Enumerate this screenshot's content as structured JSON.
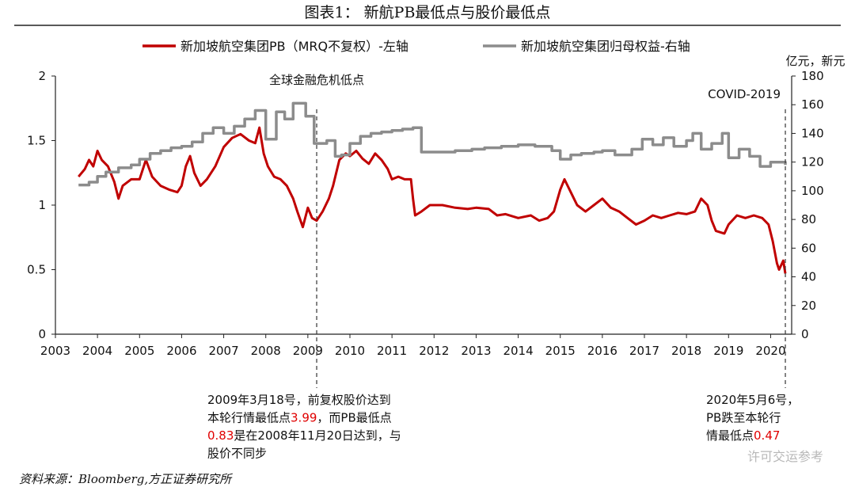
{
  "figure": {
    "title": "图表1：  新航PB最低点与股价最低点",
    "source": "资料来源：Bloomberg,方正证券研究所",
    "watermark": "许可交运参考"
  },
  "chart_data": {
    "type": "line",
    "xlim": [
      2003,
      2020.5
    ],
    "xticks": [
      2003,
      2004,
      2005,
      2006,
      2007,
      2008,
      2009,
      2010,
      2011,
      2012,
      2013,
      2014,
      2015,
      2016,
      2017,
      2018,
      2019,
      2020
    ],
    "ylim_left": [
      0,
      2
    ],
    "yticks_left": [
      0,
      0.5,
      1,
      1.5,
      2
    ],
    "ylim_right": [
      0,
      180
    ],
    "yticks_right": [
      0,
      20,
      40,
      60,
      80,
      100,
      120,
      140,
      160,
      180
    ],
    "right_unit": "亿元，新元",
    "legend_position": "top",
    "series": [
      {
        "name": "新加坡航空集团PB（MRQ不复权）-左轴",
        "axis": "left",
        "color": "#c00000",
        "style": "line",
        "points": [
          [
            2003.55,
            1.22
          ],
          [
            2003.7,
            1.28
          ],
          [
            2003.8,
            1.35
          ],
          [
            2003.9,
            1.3
          ],
          [
            2004.0,
            1.42
          ],
          [
            2004.1,
            1.35
          ],
          [
            2004.25,
            1.3
          ],
          [
            2004.4,
            1.18
          ],
          [
            2004.5,
            1.05
          ],
          [
            2004.6,
            1.15
          ],
          [
            2004.8,
            1.2
          ],
          [
            2005.0,
            1.2
          ],
          [
            2005.15,
            1.35
          ],
          [
            2005.3,
            1.22
          ],
          [
            2005.5,
            1.15
          ],
          [
            2005.7,
            1.12
          ],
          [
            2005.9,
            1.1
          ],
          [
            2006.0,
            1.15
          ],
          [
            2006.1,
            1.3
          ],
          [
            2006.2,
            1.38
          ],
          [
            2006.3,
            1.25
          ],
          [
            2006.45,
            1.15
          ],
          [
            2006.6,
            1.2
          ],
          [
            2006.8,
            1.3
          ],
          [
            2007.0,
            1.45
          ],
          [
            2007.2,
            1.52
          ],
          [
            2007.4,
            1.55
          ],
          [
            2007.6,
            1.5
          ],
          [
            2007.75,
            1.48
          ],
          [
            2007.85,
            1.6
          ],
          [
            2007.95,
            1.4
          ],
          [
            2008.05,
            1.3
          ],
          [
            2008.2,
            1.22
          ],
          [
            2008.35,
            1.2
          ],
          [
            2008.5,
            1.15
          ],
          [
            2008.65,
            1.05
          ],
          [
            2008.75,
            0.95
          ],
          [
            2008.88,
            0.83
          ],
          [
            2009.0,
            0.98
          ],
          [
            2009.1,
            0.9
          ],
          [
            2009.21,
            0.88
          ],
          [
            2009.35,
            0.95
          ],
          [
            2009.5,
            1.05
          ],
          [
            2009.6,
            1.15
          ],
          [
            2009.75,
            1.35
          ],
          [
            2009.9,
            1.4
          ],
          [
            2010.0,
            1.38
          ],
          [
            2010.15,
            1.42
          ],
          [
            2010.3,
            1.36
          ],
          [
            2010.45,
            1.32
          ],
          [
            2010.6,
            1.4
          ],
          [
            2010.75,
            1.35
          ],
          [
            2010.9,
            1.28
          ],
          [
            2011.0,
            1.2
          ],
          [
            2011.15,
            1.22
          ],
          [
            2011.3,
            1.2
          ],
          [
            2011.45,
            1.2
          ],
          [
            2011.5,
            1.05
          ],
          [
            2011.55,
            0.92
          ],
          [
            2011.7,
            0.95
          ],
          [
            2011.9,
            1.0
          ],
          [
            2012.2,
            1.0
          ],
          [
            2012.5,
            0.98
          ],
          [
            2012.8,
            0.97
          ],
          [
            2013.0,
            0.98
          ],
          [
            2013.3,
            0.97
          ],
          [
            2013.5,
            0.92
          ],
          [
            2013.7,
            0.93
          ],
          [
            2014.0,
            0.9
          ],
          [
            2014.3,
            0.92
          ],
          [
            2014.5,
            0.88
          ],
          [
            2014.7,
            0.9
          ],
          [
            2014.85,
            0.95
          ],
          [
            2015.0,
            1.12
          ],
          [
            2015.1,
            1.2
          ],
          [
            2015.25,
            1.1
          ],
          [
            2015.4,
            1.0
          ],
          [
            2015.6,
            0.95
          ],
          [
            2015.8,
            1.0
          ],
          [
            2016.0,
            1.05
          ],
          [
            2016.2,
            0.98
          ],
          [
            2016.4,
            0.95
          ],
          [
            2016.6,
            0.9
          ],
          [
            2016.8,
            0.85
          ],
          [
            2017.0,
            0.88
          ],
          [
            2017.2,
            0.92
          ],
          [
            2017.4,
            0.9
          ],
          [
            2017.6,
            0.92
          ],
          [
            2017.8,
            0.94
          ],
          [
            2018.0,
            0.93
          ],
          [
            2018.2,
            0.95
          ],
          [
            2018.35,
            1.05
          ],
          [
            2018.5,
            1.0
          ],
          [
            2018.6,
            0.88
          ],
          [
            2018.7,
            0.8
          ],
          [
            2018.9,
            0.78
          ],
          [
            2019.0,
            0.85
          ],
          [
            2019.2,
            0.92
          ],
          [
            2019.4,
            0.9
          ],
          [
            2019.6,
            0.92
          ],
          [
            2019.8,
            0.9
          ],
          [
            2019.95,
            0.85
          ],
          [
            2020.05,
            0.72
          ],
          [
            2020.15,
            0.55
          ],
          [
            2020.2,
            0.5
          ],
          [
            2020.3,
            0.57
          ],
          [
            2020.35,
            0.47
          ]
        ]
      },
      {
        "name": "新加坡航空集团归母权益-右轴",
        "axis": "right",
        "color": "#8c8c8c",
        "style": "step",
        "points": [
          [
            2003.55,
            104
          ],
          [
            2003.8,
            106
          ],
          [
            2004.0,
            110
          ],
          [
            2004.2,
            113
          ],
          [
            2004.5,
            116
          ],
          [
            2004.8,
            118
          ],
          [
            2005.0,
            122
          ],
          [
            2005.25,
            126
          ],
          [
            2005.5,
            128
          ],
          [
            2005.75,
            130
          ],
          [
            2006.0,
            131
          ],
          [
            2006.25,
            134
          ],
          [
            2006.5,
            140
          ],
          [
            2006.75,
            144
          ],
          [
            2007.0,
            140
          ],
          [
            2007.25,
            145
          ],
          [
            2007.5,
            150
          ],
          [
            2007.75,
            156
          ],
          [
            2008.0,
            136
          ],
          [
            2008.25,
            155
          ],
          [
            2008.45,
            150
          ],
          [
            2008.65,
            161
          ],
          [
            2008.95,
            152
          ],
          [
            2009.15,
            133
          ],
          [
            2009.45,
            135
          ],
          [
            2009.65,
            124
          ],
          [
            2009.8,
            125
          ],
          [
            2010.0,
            133
          ],
          [
            2010.25,
            138
          ],
          [
            2010.5,
            140
          ],
          [
            2010.75,
            141
          ],
          [
            2011.0,
            142
          ],
          [
            2011.25,
            143
          ],
          [
            2011.5,
            144
          ],
          [
            2011.7,
            127
          ],
          [
            2012.0,
            127
          ],
          [
            2012.5,
            128
          ],
          [
            2012.9,
            129
          ],
          [
            2013.2,
            130
          ],
          [
            2013.6,
            131
          ],
          [
            2014.0,
            132
          ],
          [
            2014.4,
            131
          ],
          [
            2014.8,
            128
          ],
          [
            2015.0,
            122
          ],
          [
            2015.25,
            125
          ],
          [
            2015.5,
            126
          ],
          [
            2015.8,
            127
          ],
          [
            2016.0,
            128
          ],
          [
            2016.3,
            125
          ],
          [
            2016.7,
            129
          ],
          [
            2016.95,
            136
          ],
          [
            2017.2,
            132
          ],
          [
            2017.45,
            137
          ],
          [
            2017.7,
            131
          ],
          [
            2018.0,
            135
          ],
          [
            2018.15,
            140
          ],
          [
            2018.35,
            129
          ],
          [
            2018.6,
            133
          ],
          [
            2018.85,
            140
          ],
          [
            2019.0,
            123
          ],
          [
            2019.25,
            129
          ],
          [
            2019.5,
            124
          ],
          [
            2019.75,
            117
          ],
          [
            2020.0,
            120
          ],
          [
            2020.35,
            118
          ]
        ]
      }
    ],
    "annotations": [
      {
        "id": "gfc",
        "x": 2009.21,
        "label": "全球金融危机低点",
        "note_lines": [
          {
            "segments": [
              {
                "text": "2009年3月18号，前复权股价达到",
                "red": false
              }
            ]
          },
          {
            "segments": [
              {
                "text": "本轮行情最低点",
                "red": false
              },
              {
                "text": "3.99",
                "red": true
              },
              {
                "text": "，而PB最低点",
                "red": false
              }
            ]
          },
          {
            "segments": [
              {
                "text": "0.83",
                "red": true
              },
              {
                "text": "是在2008年11月20日达到，与",
                "red": false
              }
            ]
          },
          {
            "segments": [
              {
                "text": "股价不同步",
                "red": false
              }
            ]
          }
        ]
      },
      {
        "id": "covid",
        "x": 2020.35,
        "label": "COVID-2019",
        "note_lines": [
          {
            "segments": [
              {
                "text": "2020年5月6号，",
                "red": false
              }
            ]
          },
          {
            "segments": [
              {
                "text": "PB跌至本轮行",
                "red": false
              }
            ]
          },
          {
            "segments": [
              {
                "text": "情最低点",
                "red": false
              },
              {
                "text": "0.47",
                "red": true
              }
            ]
          }
        ]
      }
    ]
  }
}
